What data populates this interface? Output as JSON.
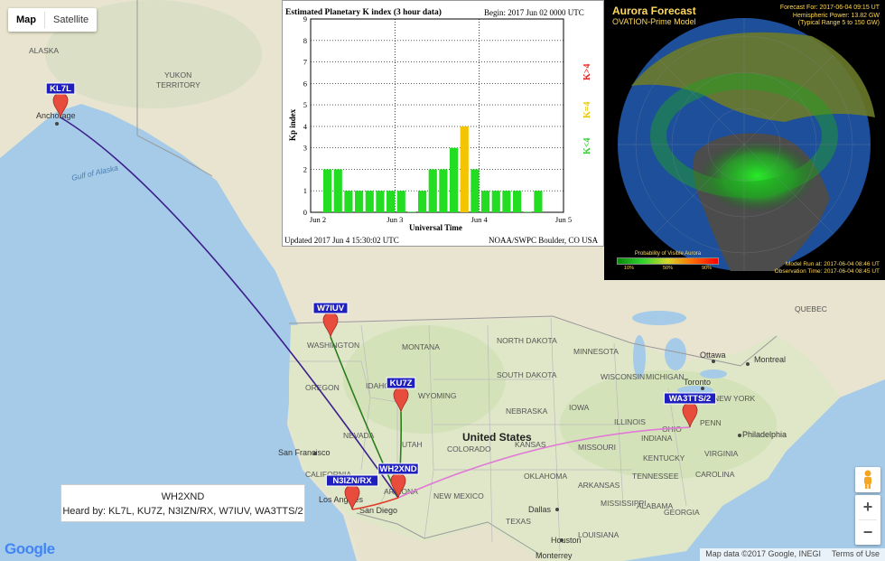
{
  "map": {
    "type_control": {
      "map_label": "Map",
      "satellite_label": "Satellite"
    },
    "place_labels": [
      {
        "id": "alaska",
        "text": "ALASKA"
      },
      {
        "id": "yukon",
        "text": "YUKON"
      },
      {
        "id": "territory",
        "text": "TERRITORY"
      },
      {
        "id": "anchorage",
        "text": "Anchorage"
      },
      {
        "id": "gulf-alaska",
        "text": "Gulf of Alaska"
      },
      {
        "id": "washington",
        "text": "WASHINGTON"
      },
      {
        "id": "montana",
        "text": "MONTANA"
      },
      {
        "id": "oregon",
        "text": "OREGON"
      },
      {
        "id": "idaho",
        "text": "IDAHO"
      },
      {
        "id": "wyoming",
        "text": "WYOMING"
      },
      {
        "id": "utah",
        "text": "UTAH"
      },
      {
        "id": "nevada",
        "text": "NEVADA"
      },
      {
        "id": "colorado",
        "text": "COLORADO"
      },
      {
        "id": "california",
        "text": "CALIFORNIA"
      },
      {
        "id": "arizona",
        "text": "ARIZONA"
      },
      {
        "id": "new-mexico",
        "text": "NEW MEXICO"
      },
      {
        "id": "usa",
        "text": "United States"
      },
      {
        "id": "sf",
        "text": "San Francisco"
      },
      {
        "id": "la",
        "text": "Los Angeles"
      },
      {
        "id": "sd",
        "text": "San Diego"
      },
      {
        "id": "dallas",
        "text": "Dallas"
      },
      {
        "id": "houston",
        "text": "Houston"
      },
      {
        "id": "monterrey",
        "text": "Monterrey"
      },
      {
        "id": "ottawa",
        "text": "Ottawa"
      },
      {
        "id": "montreal",
        "text": "Montreal"
      },
      {
        "id": "toronto",
        "text": "Toronto"
      },
      {
        "id": "ny",
        "text": "NEW YORK"
      },
      {
        "id": "penn",
        "text": "PENN"
      },
      {
        "id": "philadelphia",
        "text": "Philadelphia"
      },
      {
        "id": "ohio",
        "text": "OHIO"
      },
      {
        "id": "minnesota",
        "text": "MINNESOTA"
      },
      {
        "id": "south-dakota",
        "text": "SOUTH DAKOTA"
      },
      {
        "id": "north-dakota",
        "text": "NORTH DAKOTA"
      },
      {
        "id": "nebraska",
        "text": "NEBRASKA"
      },
      {
        "id": "iowa",
        "text": "IOWA"
      },
      {
        "id": "kansas",
        "text": "KANSAS"
      },
      {
        "id": "oklahoma",
        "text": "OKLAHOMA"
      },
      {
        "id": "texas",
        "text": "TEXAS"
      },
      {
        "id": "missouri",
        "text": "MISSOURI"
      },
      {
        "id": "illinois",
        "text": "ILLINOIS"
      },
      {
        "id": "indiana",
        "text": "INDIANA"
      },
      {
        "id": "kentucky",
        "text": "KENTUCKY"
      },
      {
        "id": "tennessee",
        "text": "TENNESSEE"
      },
      {
        "id": "arkansas",
        "text": "ARKANSAS"
      },
      {
        "id": "mississippi",
        "text": "MISSISSIPPI"
      },
      {
        "id": "alabama",
        "text": "ALABAMA"
      },
      {
        "id": "georgia",
        "text": "GEORGIA"
      },
      {
        "id": "carolina",
        "text": "CAROLINA"
      },
      {
        "id": "wisconsin",
        "text": "WISCONSIN"
      },
      {
        "id": "michigan",
        "text": "MICHIGAN"
      },
      {
        "id": "virginia",
        "text": "VIRGINIA"
      },
      {
        "id": "louisiana",
        "text": "LOUISIANA"
      },
      {
        "id": "quebec",
        "text": "QUEBEC"
      }
    ],
    "stations": [
      {
        "id": "KL7L",
        "label": "KL7L"
      },
      {
        "id": "W7IUV",
        "label": "W7IUV"
      },
      {
        "id": "KU7Z",
        "label": "KU7Z"
      },
      {
        "id": "WH2XND",
        "label": "WH2XND"
      },
      {
        "id": "N3IZN",
        "label": "N3IZN/RX"
      },
      {
        "id": "WA3TTS",
        "label": "WA3TTS/2"
      }
    ],
    "paths": [
      {
        "from": "WH2XND",
        "to": "KL7L",
        "color": "#3b1e8c"
      },
      {
        "from": "WH2XND",
        "to": "W7IUV",
        "color": "#2a7d1a"
      },
      {
        "from": "WH2XND",
        "to": "KU7Z",
        "color": "#2a7d1a"
      },
      {
        "from": "WH2XND",
        "to": "N3IZN",
        "color": "#e23b2a"
      },
      {
        "from": "WH2XND",
        "to": "WA3TTS",
        "color": "#e07ad6"
      }
    ],
    "infobox": {
      "title": "WH2XND",
      "heard_by": "Heard by: KL7L, KU7Z, N3IZN/RX, W7IUV, WA3TTS/2"
    },
    "zoom": {
      "in": "+",
      "out": "−"
    },
    "attribution": {
      "data": "Map data ©2017 Google, INEGI",
      "terms": "Terms of Use"
    },
    "logo_text": "Google"
  },
  "kp": {
    "title": "Estimated Planetary K index (3 hour data)",
    "begin": "Begin:  2017 Jun 02 0000 UTC",
    "ylabel": "Kp index",
    "xlabel": "Universal Time",
    "updated": "Updated 2017 Jun  4 15:30:02 UTC",
    "source": "NOAA/SWPC Boulder, CO USA",
    "right_labels": [
      {
        "text": "K<4",
        "color": "#33cc33"
      },
      {
        "text": "K=4",
        "color": "#e6c800"
      },
      {
        "text": "K>4",
        "color": "#e62020"
      }
    ],
    "colors": {
      "low": "#22dd22",
      "eq4": "#f5c400"
    }
  },
  "chart_data": {
    "type": "bar",
    "title": "Estimated Planetary K index (3 hour data)",
    "xlabel": "Universal Time",
    "ylabel": "Kp index",
    "ylim": [
      0,
      9
    ],
    "yticks": [
      0,
      1,
      2,
      3,
      4,
      5,
      6,
      7,
      8,
      9
    ],
    "xticks": [
      "Jun 2",
      "Jun 3",
      "Jun 4",
      "Jun 5"
    ],
    "grid": true,
    "values": [
      2,
      2,
      1,
      1,
      1,
      1,
      1,
      1,
      0,
      1,
      2,
      2,
      3,
      4,
      2,
      1,
      1,
      1,
      1,
      0,
      1
    ]
  },
  "aurora": {
    "title": "Aurora Forecast",
    "model": "OVATION-Prime Model",
    "forecast_for": "Forecast For: 2017-06-04 09:15 UT",
    "hemi_power": "Hemispheric Power: 13.82 GW",
    "typical_range": "(Typical Range 5 to 150 GW)",
    "legend_title": "Probability of Visible Aurora",
    "legend_ticks": [
      "10%",
      "50%",
      "90%"
    ],
    "model_run": "Model Run at: 2017-06-04 08:46 UT",
    "observation": "Observation Time: 2017-06-04 08:45 UT"
  }
}
